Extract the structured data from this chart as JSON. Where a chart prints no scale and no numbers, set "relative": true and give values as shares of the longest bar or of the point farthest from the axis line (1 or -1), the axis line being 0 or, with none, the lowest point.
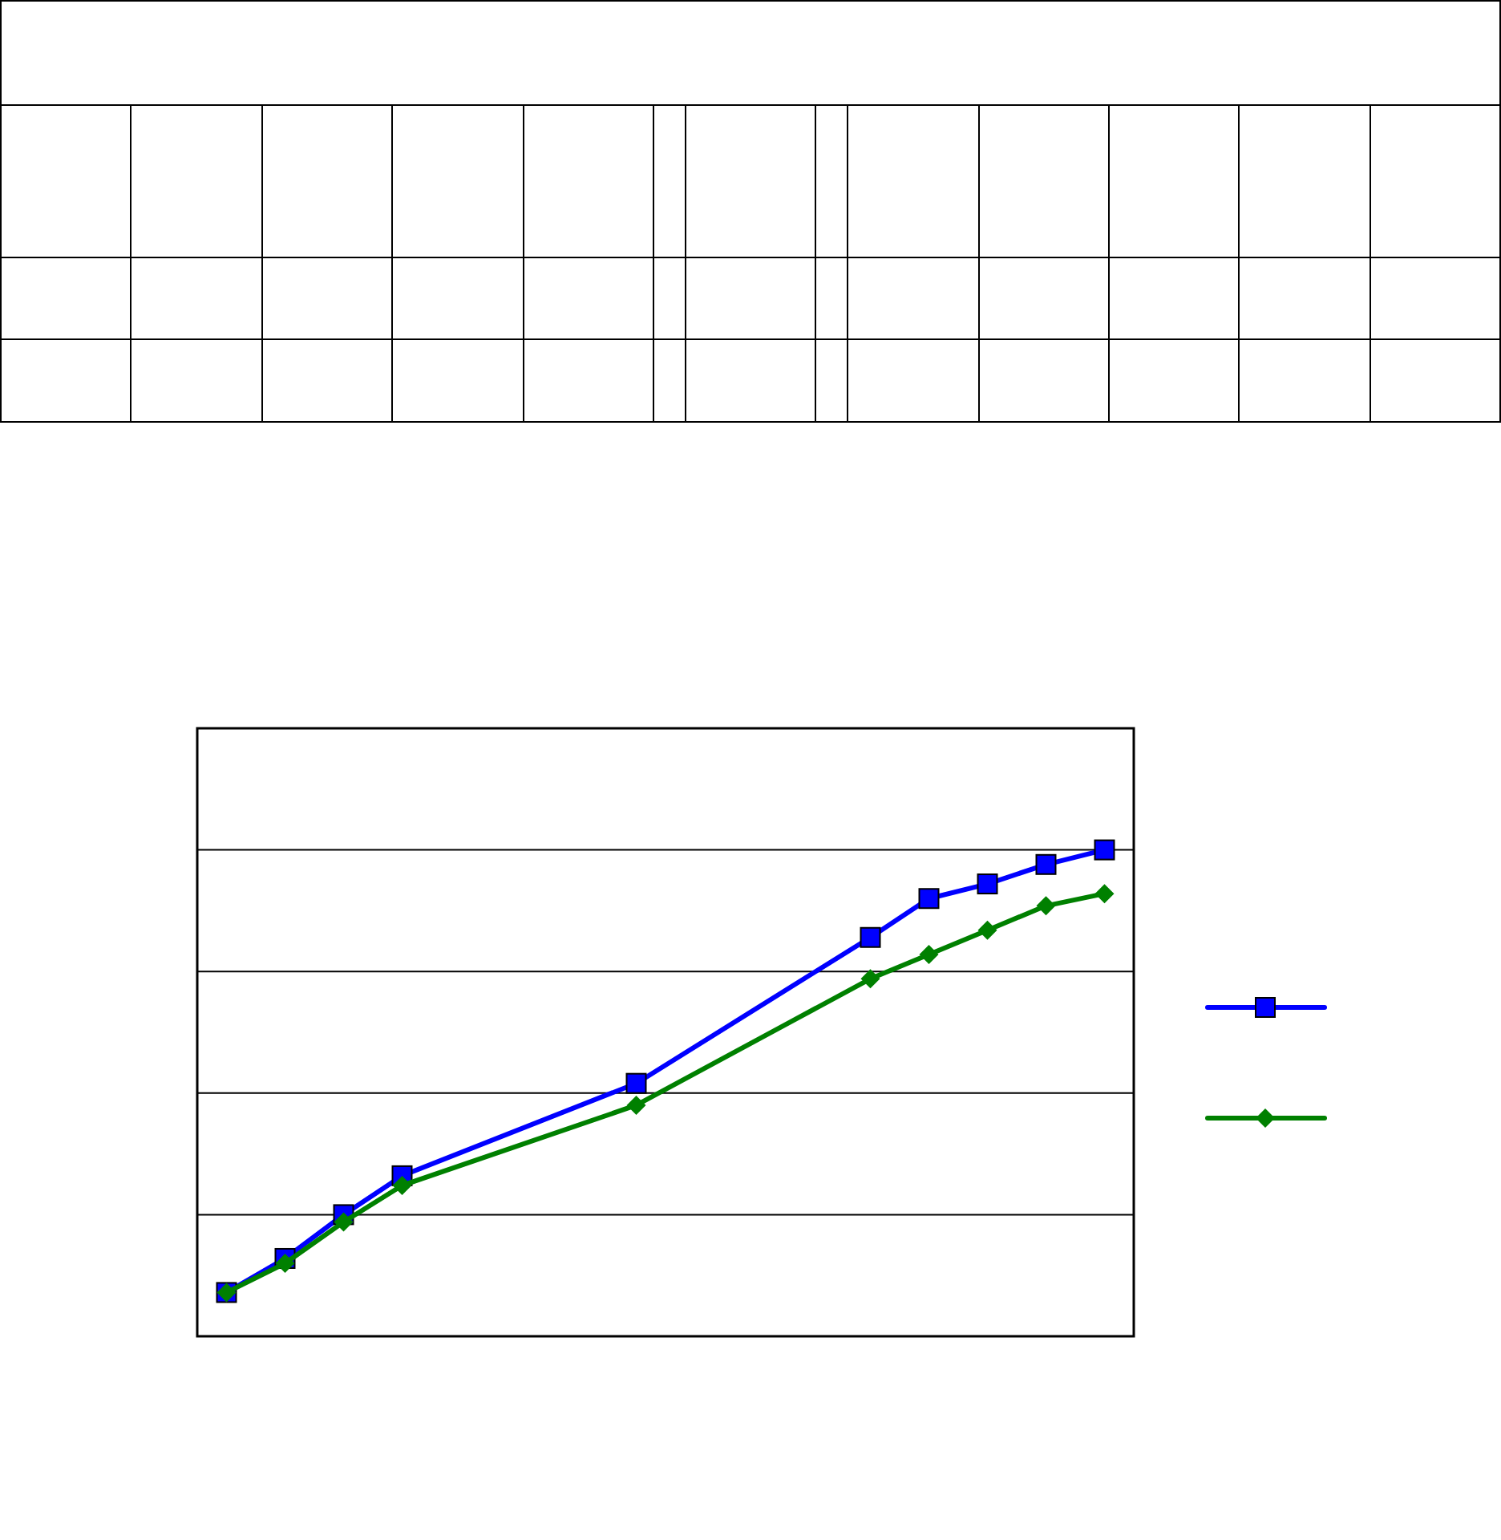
{
  "chart_data": {
    "type": "line",
    "relative": true,
    "categories": [
      null,
      null,
      null,
      null,
      null,
      null,
      null,
      null,
      null,
      null,
      null,
      null,
      null,
      null,
      null,
      null
    ],
    "grid": "y",
    "series": [
      {
        "color": "#0000ff",
        "marker": "square",
        "values": [
          0.09,
          0.16,
          0.25,
          0.33,
          null,
          null,
          null,
          0.52,
          null,
          null,
          null,
          0.82,
          0.9,
          0.93,
          0.97,
          1.0
        ]
      },
      {
        "color": "#008000",
        "marker": "diamond",
        "values": [
          0.09,
          0.15,
          0.235,
          0.31,
          null,
          null,
          null,
          0.475,
          null,
          null,
          null,
          0.735,
          0.785,
          0.835,
          0.885,
          0.91
        ]
      }
    ]
  }
}
